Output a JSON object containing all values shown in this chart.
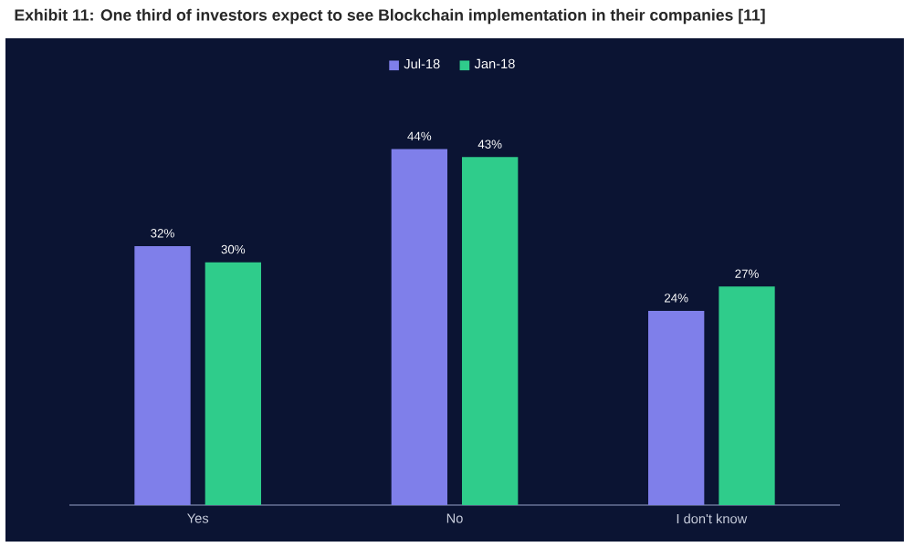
{
  "chart_data": {
    "type": "bar",
    "title": "Exhibit 11: One third of investors expect to see Blockchain implementation in their companies [11]",
    "categories": [
      "Yes",
      "No",
      "I don't know"
    ],
    "series": [
      {
        "name": "Jul-18",
        "color": "#7f7fea",
        "values": [
          32,
          44,
          24
        ],
        "value_labels": [
          "32%",
          "44%",
          "24%"
        ]
      },
      {
        "name": "Jan-18",
        "color": "#2fcc8b",
        "values": [
          30,
          43,
          27
        ],
        "value_labels": [
          "30%",
          "43%",
          "27%"
        ]
      }
    ],
    "legend": "top"
  }
}
